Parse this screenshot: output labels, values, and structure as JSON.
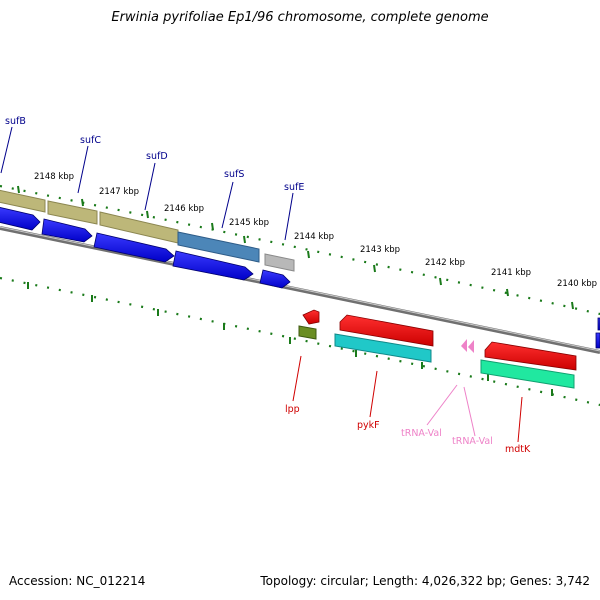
{
  "title": "Erwinia pyrifoliae Ep1/96 chromosome, complete genome",
  "accession_label": "Accession: NC_012214",
  "summary_label": "Topology: circular; Length: 4,026,322 bp; Genes: 3,742",
  "scale_labels": [
    "2148 kbp",
    "2147 kbp",
    "2146 kbp",
    "2145 kbp",
    "2144 kbp",
    "2143 kbp",
    "2142 kbp",
    "2141 kbp",
    "2140 kbp"
  ],
  "genes_top": [
    "sufB",
    "sufC",
    "sufD",
    "sufS",
    "sufE"
  ],
  "genes_bottom": [
    "lpp",
    "pykF",
    "tRNA-Val",
    "tRNA-Val",
    "mdtK"
  ],
  "colors": {
    "forward_label": "#00008b",
    "reverse_label": "#d00000",
    "trna_label": "#ee82c8",
    "tick": "#1a7a1a",
    "backbone": "#808080"
  }
}
